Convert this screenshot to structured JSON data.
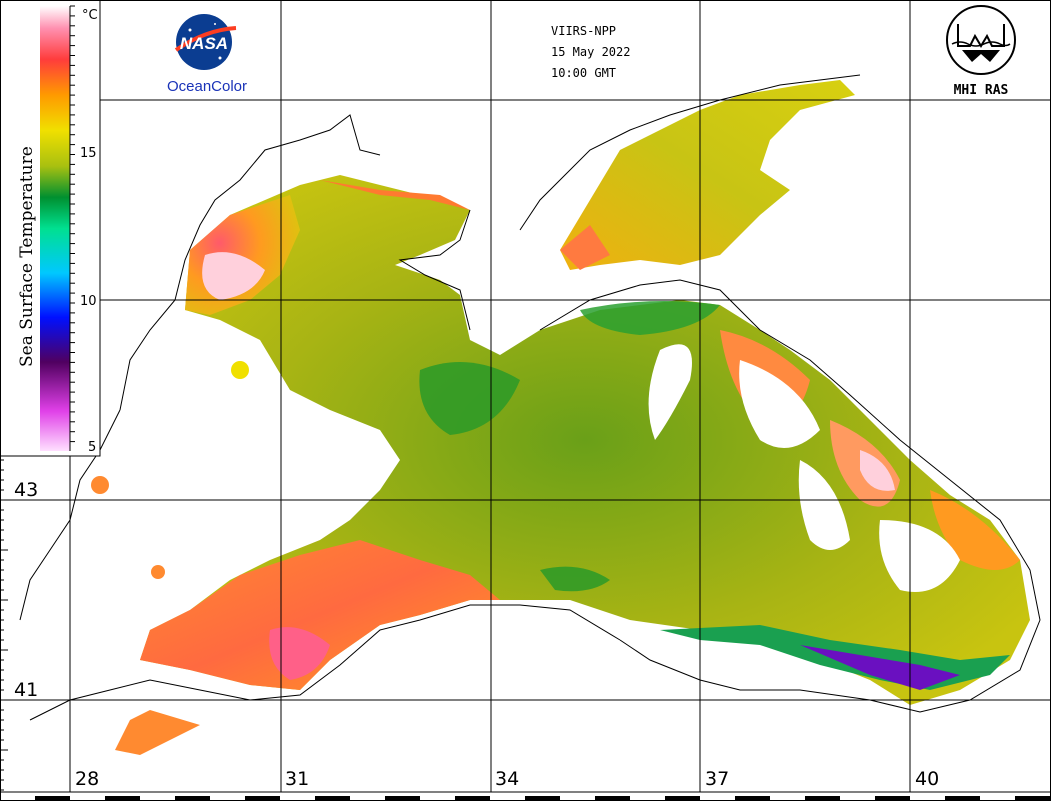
{
  "header": {
    "satellite": "VIIRS-NPP",
    "date": "15 May 2022",
    "time": "10:00 GMT"
  },
  "logos": {
    "nasa_text": "NASA",
    "oceancolor_text": "OceanColor",
    "mhi_text": "MHI RAS"
  },
  "colorbar": {
    "title": "Sea Surface Temperature",
    "unit": "°C",
    "ticks": [
      "15",
      "10",
      "5"
    ],
    "range": [
      5,
      20
    ],
    "colors": [
      "#ffd8ff",
      "#d020d0",
      "#400050",
      "#0000ff",
      "#00d0ff",
      "#00e080",
      "#008a2a",
      "#b0c010",
      "#f0e000",
      "#ff8a00",
      "#ff3a3a",
      "#ff80b0",
      "#ffffff"
    ]
  },
  "axes": {
    "longitude_labels": [
      "28",
      "31",
      "34",
      "37",
      "40"
    ],
    "latitude_labels": [
      "43",
      "41"
    ]
  }
}
